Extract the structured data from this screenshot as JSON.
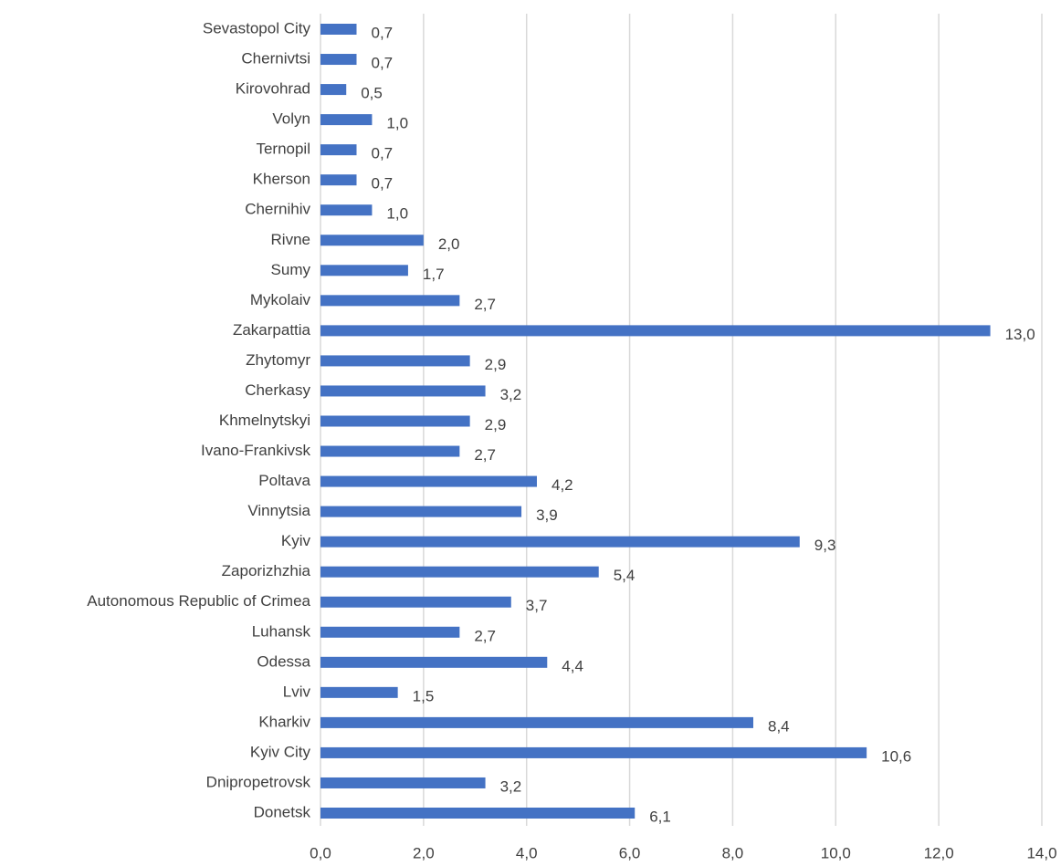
{
  "chart_data": {
    "type": "hbar",
    "categories": [
      "Sevastopol City",
      "Chernivtsi",
      "Kirovohrad",
      "Volyn",
      "Ternopil",
      "Kherson",
      "Chernihiv",
      "Rivne",
      "Sumy",
      "Mykolaiv",
      "Zakarpattia",
      "Zhytomyr",
      "Cherkasy",
      "Khmelnytskyi",
      "Ivano-Frankivsk",
      "Poltava",
      "Vinnytsia",
      "Kyiv",
      "Zaporizhzhia",
      "Autonomous Republic of Crimea",
      "Luhansk",
      "Odessa",
      "Lviv",
      "Kharkiv",
      "Kyiv City",
      "Dnipropetrovsk",
      "Donetsk"
    ],
    "values": [
      0.7,
      0.7,
      0.5,
      1.0,
      0.7,
      0.7,
      1.0,
      2.0,
      1.7,
      2.7,
      13.0,
      2.9,
      3.2,
      2.9,
      2.7,
      4.2,
      3.9,
      9.3,
      5.4,
      3.7,
      2.7,
      4.4,
      1.5,
      8.4,
      10.6,
      3.2,
      6.1
    ],
    "value_labels": [
      "0,7",
      "0,7",
      "0,5",
      "1,0",
      "0,7",
      "0,7",
      "1,0",
      "2,0",
      "1,7",
      "2,7",
      "13,0",
      "2,9",
      "3,2",
      "2,9",
      "2,7",
      "4,2",
      "3,9",
      "9,3",
      "5,4",
      "3,7",
      "2,7",
      "4,4",
      "1,5",
      "8,4",
      "10,6",
      "3,2",
      "6,1"
    ],
    "color": "#4472c4",
    "xlim": [
      0,
      14
    ],
    "xticks": [
      {
        "value": 0,
        "label": "0,0"
      },
      {
        "value": 2,
        "label": "2,0"
      },
      {
        "value": 4,
        "label": "4,0"
      },
      {
        "value": 6,
        "label": "6,0"
      },
      {
        "value": 8,
        "label": "8,0"
      },
      {
        "value": 10,
        "label": "10,0"
      },
      {
        "value": 12,
        "label": "12,0"
      },
      {
        "value": 14,
        "label": "14,0"
      }
    ],
    "grid": true
  }
}
